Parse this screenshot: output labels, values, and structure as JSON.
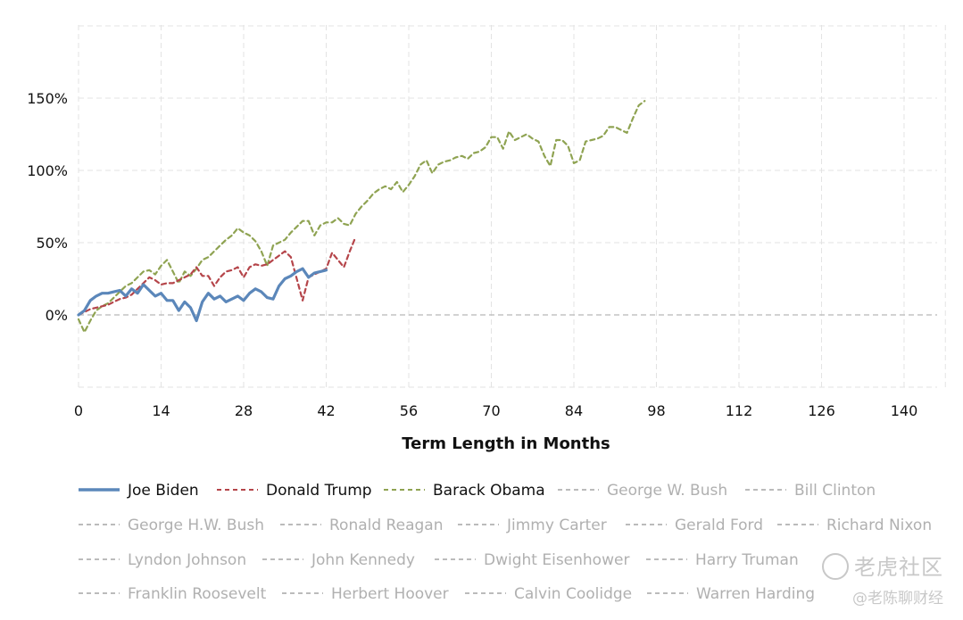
{
  "chart_data": {
    "type": "line",
    "xlabel": "Term Length in Months",
    "ylabel": "",
    "xlim": [
      0,
      144
    ],
    "ylim": [
      -50,
      200
    ],
    "xticks": [
      0,
      14,
      28,
      42,
      56,
      70,
      84,
      98,
      112,
      126,
      140
    ],
    "xtick_labels": [
      "0",
      "14",
      "28",
      "42",
      "56",
      "70",
      "84",
      "98",
      "112",
      "126",
      "140"
    ],
    "yticks": [
      0,
      50,
      100,
      150
    ],
    "ytick_labels": [
      "0%",
      "50%",
      "100%",
      "150%"
    ],
    "grid": true,
    "legend_position": "bottom",
    "series": [
      {
        "name": "Joe Biden",
        "color": "#5b87ba",
        "dash": "solid",
        "active": true,
        "x": [
          0,
          1,
          2,
          3,
          4,
          5,
          6,
          7,
          8,
          9,
          10,
          11,
          12,
          13,
          14,
          15,
          16,
          17,
          18,
          19,
          20,
          21,
          22,
          23,
          24,
          25,
          26,
          27,
          28,
          29,
          30,
          31,
          32,
          33,
          34,
          35,
          36,
          37,
          38,
          39,
          40,
          41,
          42
        ],
        "values": [
          0,
          3,
          10,
          13,
          15,
          15,
          16,
          17,
          13,
          18,
          15,
          21,
          17,
          13,
          15,
          10,
          10,
          3,
          9,
          5,
          -4,
          9,
          15,
          11,
          13,
          9,
          11,
          13,
          10,
          15,
          18,
          16,
          12,
          11,
          20,
          25,
          27,
          30,
          32,
          26,
          29,
          30,
          31
        ]
      },
      {
        "name": "Donald Trump",
        "color": "#b5454a",
        "dash": "dashed",
        "active": true,
        "x": [
          0,
          1,
          2,
          3,
          4,
          5,
          6,
          7,
          8,
          9,
          10,
          11,
          12,
          13,
          14,
          15,
          16,
          17,
          18,
          19,
          20,
          21,
          22,
          23,
          24,
          25,
          26,
          27,
          28,
          29,
          30,
          31,
          32,
          33,
          34,
          35,
          36,
          37,
          38,
          39,
          40,
          41,
          42,
          43,
          44,
          45,
          46,
          47
        ],
        "values": [
          0,
          2,
          4,
          5,
          6,
          7,
          9,
          11,
          12,
          14,
          18,
          22,
          26,
          24,
          21,
          22,
          22,
          24,
          26,
          28,
          33,
          27,
          27,
          20,
          26,
          30,
          31,
          33,
          26,
          33,
          35,
          34,
          35,
          38,
          41,
          44,
          40,
          25,
          10,
          26,
          28,
          30,
          32,
          43,
          38,
          33,
          44,
          54
        ]
      },
      {
        "name": "Barack Obama",
        "color": "#8fa352",
        "dash": "dashed",
        "active": true,
        "x": [
          0,
          1,
          2,
          3,
          4,
          5,
          6,
          7,
          8,
          9,
          10,
          11,
          12,
          13,
          14,
          15,
          16,
          17,
          18,
          19,
          20,
          21,
          22,
          23,
          24,
          25,
          26,
          27,
          28,
          29,
          30,
          31,
          32,
          33,
          34,
          35,
          36,
          37,
          38,
          39,
          40,
          41,
          42,
          43,
          44,
          45,
          46,
          47,
          48,
          49,
          50,
          51,
          52,
          53,
          54,
          55,
          56,
          57,
          58,
          59,
          60,
          61,
          62,
          63,
          64,
          65,
          66,
          67,
          68,
          69,
          70,
          71,
          72,
          73,
          74,
          75,
          76,
          77,
          78,
          79,
          80,
          81,
          82,
          83,
          84,
          85,
          86,
          87,
          88,
          89,
          90,
          91,
          92,
          93,
          94,
          95,
          96
        ],
        "values": [
          -3,
          -12,
          -4,
          3,
          6,
          8,
          12,
          16,
          20,
          22,
          26,
          30,
          31,
          28,
          34,
          38,
          30,
          22,
          30,
          27,
          32,
          38,
          40,
          44,
          48,
          52,
          55,
          60,
          57,
          55,
          51,
          44,
          34,
          48,
          50,
          52,
          57,
          61,
          65,
          65,
          55,
          62,
          64,
          64,
          67,
          63,
          62,
          70,
          75,
          79,
          84,
          87,
          89,
          87,
          92,
          85,
          90,
          96,
          104,
          107,
          98,
          104,
          106,
          107,
          109,
          110,
          108,
          112,
          113,
          116,
          123,
          123,
          115,
          127,
          121,
          123,
          125,
          122,
          120,
          110,
          103,
          121,
          121,
          117,
          105,
          107,
          120,
          121,
          122,
          124,
          130,
          130,
          128,
          126,
          136,
          145,
          148
        ]
      },
      {
        "name": "George W. Bush",
        "color": "#bbbbbb",
        "dash": "dashed",
        "active": false
      },
      {
        "name": "Bill Clinton",
        "color": "#bbbbbb",
        "dash": "dashed",
        "active": false
      },
      {
        "name": "George H.W. Bush",
        "color": "#bbbbbb",
        "dash": "dashed",
        "active": false
      },
      {
        "name": "Ronald Reagan",
        "color": "#bbbbbb",
        "dash": "dashed",
        "active": false
      },
      {
        "name": "Jimmy Carter",
        "color": "#bbbbbb",
        "dash": "dashed",
        "active": false
      },
      {
        "name": "Gerald Ford",
        "color": "#bbbbbb",
        "dash": "dashed",
        "active": false
      },
      {
        "name": "Richard Nixon",
        "color": "#bbbbbb",
        "dash": "dashed",
        "active": false
      },
      {
        "name": "Lyndon Johnson",
        "color": "#bbbbbb",
        "dash": "dashed",
        "active": false
      },
      {
        "name": "John Kennedy",
        "color": "#bbbbbb",
        "dash": "dashed",
        "active": false
      },
      {
        "name": "Dwight Eisenhower",
        "color": "#bbbbbb",
        "dash": "dashed",
        "active": false
      },
      {
        "name": "Harry Truman",
        "color": "#bbbbbb",
        "dash": "dashed",
        "active": false
      },
      {
        "name": "Franklin Roosevelt",
        "color": "#bbbbbb",
        "dash": "dashed",
        "active": false
      },
      {
        "name": "Herbert Hoover",
        "color": "#bbbbbb",
        "dash": "dashed",
        "active": false
      },
      {
        "name": "Calvin Coolidge",
        "color": "#bbbbbb",
        "dash": "dashed",
        "active": false
      },
      {
        "name": "Warren Harding",
        "color": "#bbbbbb",
        "dash": "dashed",
        "active": false
      }
    ]
  },
  "watermark": {
    "logo_text": "老虎社区",
    "handle": "@老陈聊财经"
  }
}
